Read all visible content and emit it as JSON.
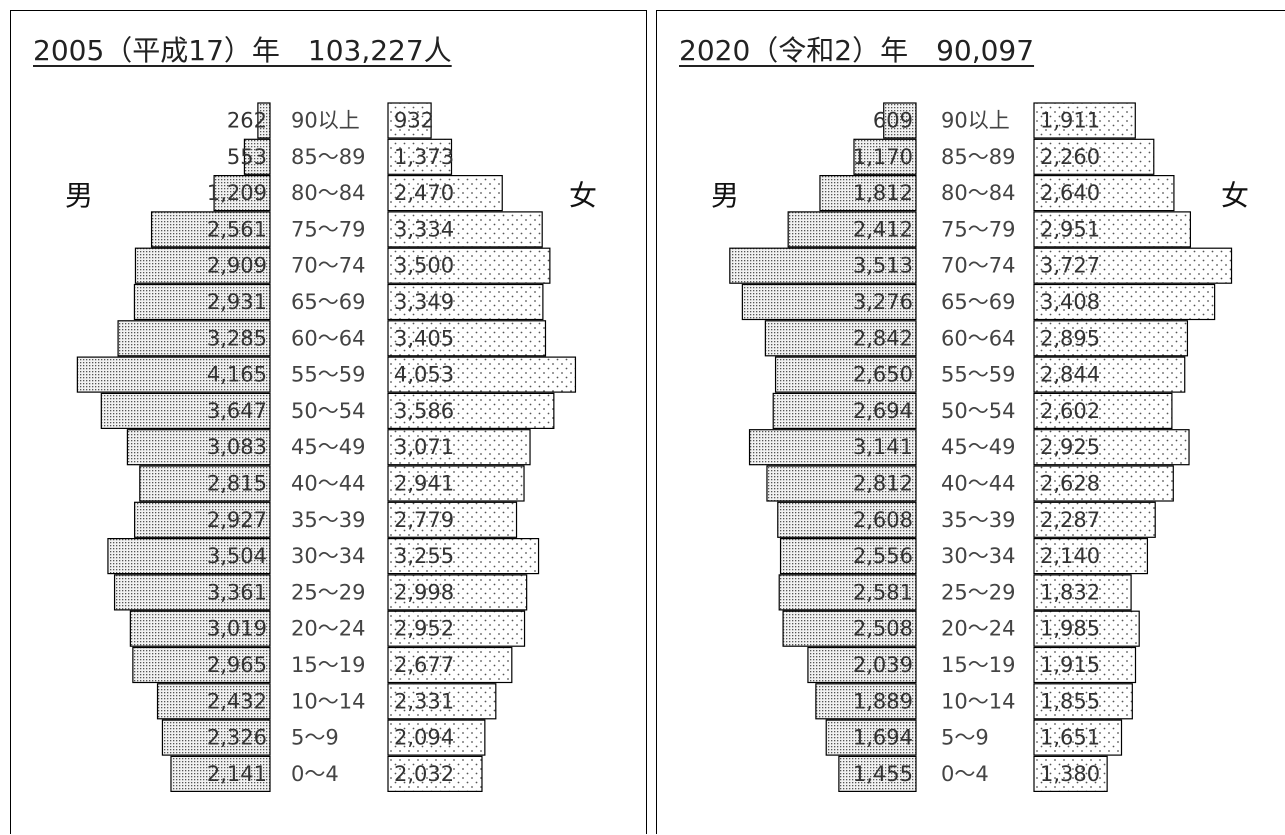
{
  "chart_data": [
    {
      "type": "bar",
      "title": "2005（平成17）年　103,227人",
      "male_label": "男",
      "female_label": "女",
      "categories": [
        "90以上",
        "85～89",
        "80～84",
        "75～79",
        "70～74",
        "65～69",
        "60～64",
        "55～59",
        "50～54",
        "45～49",
        "40～44",
        "35～39",
        "30～34",
        "25～29",
        "20～24",
        "15～19",
        "10～14",
        "5～9",
        "0～4"
      ],
      "series": [
        {
          "name": "男",
          "values": [
            262,
            553,
            1209,
            2561,
            2909,
            2931,
            3285,
            4165,
            3647,
            3083,
            2815,
            2927,
            3504,
            3361,
            3019,
            2965,
            2432,
            2326,
            2141
          ],
          "labels": [
            "262",
            "553",
            "1,209",
            "2,561",
            "2,909",
            "2,931",
            "3,285",
            "4,165",
            "3,647",
            "3,083",
            "2,815",
            "2,927",
            "3,504",
            "3,361",
            "3,019",
            "2,965",
            "2,432",
            "2,326",
            "2,141"
          ]
        },
        {
          "name": "女",
          "values": [
            932,
            1373,
            2470,
            3334,
            3500,
            3349,
            3405,
            4053,
            3586,
            3071,
            2941,
            2779,
            3255,
            2998,
            2952,
            2677,
            2331,
            2094,
            2032
          ],
          "labels": [
            "932",
            "1,373",
            "2,470",
            "3,334",
            "3,500",
            "3,349",
            "3,405",
            "4,053",
            "3,586",
            "3,071",
            "2,941",
            "2,779",
            "3,255",
            "2,998",
            "2,952",
            "2,677",
            "2,331",
            "2,094",
            "2,032"
          ]
        }
      ],
      "xlim": [
        0,
        4600
      ]
    },
    {
      "type": "bar",
      "title": "2020（令和2）年　90,097",
      "male_label": "男",
      "female_label": "女",
      "categories": [
        "90以上",
        "85～89",
        "80～84",
        "75～79",
        "70～74",
        "65～69",
        "60～64",
        "55～59",
        "50～54",
        "45～49",
        "40～44",
        "35～39",
        "30～34",
        "25～29",
        "20～24",
        "15～19",
        "10～14",
        "5～9",
        "0～4"
      ],
      "series": [
        {
          "name": "男",
          "values": [
            609,
            1170,
            1812,
            2412,
            3513,
            3276,
            2842,
            2650,
            2694,
            3141,
            2812,
            2608,
            2556,
            2581,
            2508,
            2039,
            1889,
            1694,
            1455
          ],
          "labels": [
            "609",
            "1,170",
            "1,812",
            "2,412",
            "3,513",
            "3,276",
            "2,842",
            "2,650",
            "2,694",
            "3,141",
            "2,812",
            "2,608",
            "2,556",
            "2,581",
            "2,508",
            "2,039",
            "1,889",
            "1,694",
            "1,455"
          ]
        },
        {
          "name": "女",
          "values": [
            1911,
            2260,
            2640,
            2951,
            3727,
            3408,
            2895,
            2844,
            2602,
            2925,
            2628,
            2287,
            2140,
            1832,
            1985,
            1915,
            1855,
            1651,
            1380
          ],
          "labels": [
            "1,911",
            "2,260",
            "2,640",
            "2,951",
            "3,727",
            "3,408",
            "2,895",
            "2,844",
            "2,602",
            "2,925",
            "2,628",
            "2,287",
            "2,140",
            "1,832",
            "1,985",
            "1,915",
            "1,855",
            "1,651",
            "1,380"
          ]
        }
      ],
      "xlim": [
        0,
        4600
      ]
    }
  ]
}
